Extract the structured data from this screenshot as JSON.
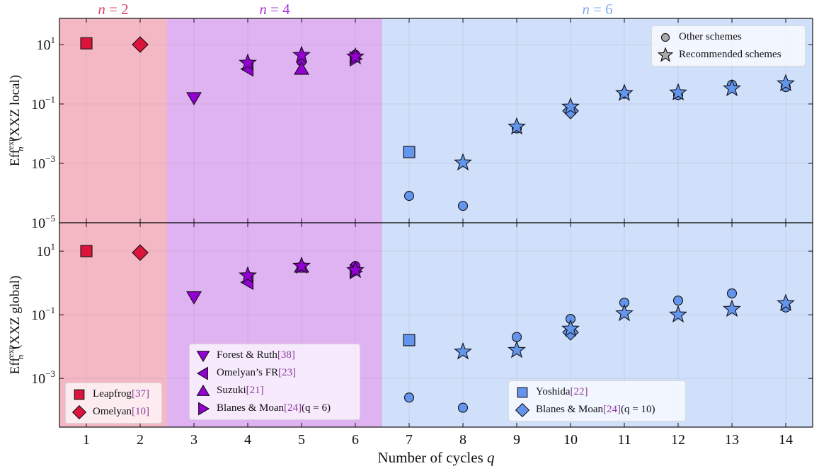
{
  "chart_data": {
    "type": "scatter",
    "xlabel": "Number of cycles",
    "xlabel_var": "q",
    "xlim": [
      0.5,
      14.5
    ],
    "xticks": [
      1,
      2,
      3,
      4,
      5,
      6,
      7,
      8,
      9,
      10,
      11,
      12,
      13,
      14
    ],
    "yscale": "log",
    "grid": true,
    "regions": [
      {
        "label_var": "n",
        "label_eq": " = 2",
        "from": 0.5,
        "to": 2.5,
        "color": "#dc143c"
      },
      {
        "label_var": "n",
        "label_eq": " = 4",
        "from": 2.5,
        "to": 6.5,
        "color": "#9400d3"
      },
      {
        "label_var": "n",
        "label_eq": " = 6",
        "from": 6.5,
        "to": 14.5,
        "color": "#6495ed"
      }
    ],
    "panels": [
      {
        "ylabel": {
          "base": "Eff",
          "sub": "n",
          "sup": "exp",
          "arg": "(XXZ local)"
        },
        "ylim": [
          1e-05,
          76
        ],
        "yticks": [
          10,
          0.1,
          0.001,
          1e-05
        ],
        "ytick_labels": [
          {
            "base": "10",
            "exp": "1"
          },
          {
            "base": "10",
            "exp": "−1"
          },
          {
            "base": "10",
            "exp": "−3"
          },
          {
            "base": "10",
            "exp": "−5"
          }
        ],
        "series": [
          {
            "name": "Other schemes",
            "marker": "circle",
            "x": [
              5,
              6,
              7,
              8,
              9,
              10,
              11,
              12,
              13,
              14
            ],
            "y": [
              2.7,
              4.5,
              8e-05,
              3.7e-05,
              0.015,
              0.07,
              0.22,
              0.2,
              0.44,
              0.37
            ]
          },
          {
            "name": "Leapfrog",
            "marker": "square",
            "x": [
              1
            ],
            "y": [
              11
            ]
          },
          {
            "name": "Omelyan",
            "marker": "diamond",
            "x": [
              2
            ],
            "y": [
              10
            ]
          },
          {
            "name": "Forest & Ruth",
            "marker": "triangle-down",
            "x": [
              3
            ],
            "y": [
              0.16
            ]
          },
          {
            "name": "Omelyan's FR",
            "marker": "triangle-left",
            "x": [
              4
            ],
            "y": [
              1.5
            ]
          },
          {
            "name": "Suzuki",
            "marker": "triangle-up",
            "x": [
              5
            ],
            "y": [
              1.5
            ]
          },
          {
            "name": "Blanes & Moan (q = 6)",
            "marker": "triangle-right",
            "x": [
              6
            ],
            "y": [
              3.3
            ]
          },
          {
            "name": "Yoshida",
            "marker": "square",
            "x": [
              7
            ],
            "y": [
              0.0024
            ]
          },
          {
            "name": "Blanes & Moan (q = 10)",
            "marker": "diamond",
            "x": [
              10
            ],
            "y": [
              0.058
            ]
          },
          {
            "name": "Recommended schemes",
            "marker": "star",
            "x": [
              4,
              5,
              6,
              8,
              9,
              10,
              11,
              12,
              13,
              14
            ],
            "y": [
              2.4,
              4.4,
              3.9,
              0.00105,
              0.017,
              0.08,
              0.23,
              0.24,
              0.33,
              0.49
            ]
          }
        ]
      },
      {
        "ylabel": {
          "base": "Eff",
          "sub": "n",
          "sup": "exp",
          "arg": "(XXZ global)"
        },
        "ylim": [
          2.95e-05,
          78
        ],
        "yticks": [
          10,
          0.1,
          0.001
        ],
        "ytick_labels": [
          {
            "base": "10",
            "exp": "1"
          },
          {
            "base": "10",
            "exp": "−1"
          },
          {
            "base": "10",
            "exp": "−3"
          }
        ],
        "series": [
          {
            "name": "Other schemes",
            "marker": "circle",
            "x": [
              5,
              6,
              7,
              8,
              9,
              10,
              11,
              12,
              13,
              14
            ],
            "y": [
              3.3,
              3.4,
              0.00025,
              0.00012,
              0.02,
              0.074,
              0.24,
              0.28,
              0.47,
              0.17
            ]
          },
          {
            "name": "Leapfrog",
            "marker": "square",
            "x": [
              1
            ],
            "y": [
              10
            ]
          },
          {
            "name": "Omelyan",
            "marker": "diamond",
            "x": [
              2
            ],
            "y": [
              9
            ]
          },
          {
            "name": "Forest & Ruth",
            "marker": "triangle-down",
            "x": [
              3
            ],
            "y": [
              0.36
            ]
          },
          {
            "name": "Omelyan's FR",
            "marker": "triangle-left",
            "x": [
              4
            ],
            "y": [
              1.05
            ]
          },
          {
            "name": "Suzuki",
            "marker": "triangle-up",
            "x": [
              5
            ],
            "y": [
              3.2
            ]
          },
          {
            "name": "Blanes & Moan (q = 6)",
            "marker": "triangle-right",
            "x": [
              6
            ],
            "y": [
              2.3
            ]
          },
          {
            "name": "Yoshida",
            "marker": "square",
            "x": [
              7
            ],
            "y": [
              0.016
            ]
          },
          {
            "name": "Blanes & Moan (q = 10)",
            "marker": "diamond",
            "x": [
              10
            ],
            "y": [
              0.028
            ]
          },
          {
            "name": "Recommended schemes",
            "marker": "star",
            "x": [
              4,
              5,
              6,
              8,
              9,
              10,
              11,
              12,
              13,
              14
            ],
            "y": [
              1.7,
              3.4,
              2.5,
              0.0069,
              0.0077,
              0.036,
              0.11,
              0.1,
              0.15,
              0.23
            ]
          }
        ]
      }
    ],
    "legends": {
      "markers": [
        {
          "marker": "circle",
          "label": "Other schemes"
        },
        {
          "marker": "star",
          "label": "Recommended schemes"
        }
      ],
      "n2": [
        {
          "marker": "square",
          "name": "Leapfrog ",
          "ref": "[37]",
          "suffix": ""
        },
        {
          "marker": "diamond",
          "name": "Omelyan ",
          "ref": "[10]",
          "suffix": ""
        }
      ],
      "n4": [
        {
          "marker": "triangle-down",
          "name": "Forest & Ruth ",
          "ref": "[38]",
          "suffix": ""
        },
        {
          "marker": "triangle-left",
          "name": "Omelyan’s FR ",
          "ref": "[23]",
          "suffix": ""
        },
        {
          "marker": "triangle-up",
          "name": "Suzuki ",
          "ref": "[21]",
          "suffix": ""
        },
        {
          "marker": "triangle-right",
          "name": "Blanes & Moan ",
          "ref": "[24]",
          "suffix": " (q = 6)"
        }
      ],
      "n6": [
        {
          "marker": "square",
          "name": "Yoshida ",
          "ref": "[22]",
          "suffix": ""
        },
        {
          "marker": "diamond",
          "name": "Blanes & Moan ",
          "ref": "[24]",
          "suffix": " (q = 10)"
        }
      ]
    }
  }
}
